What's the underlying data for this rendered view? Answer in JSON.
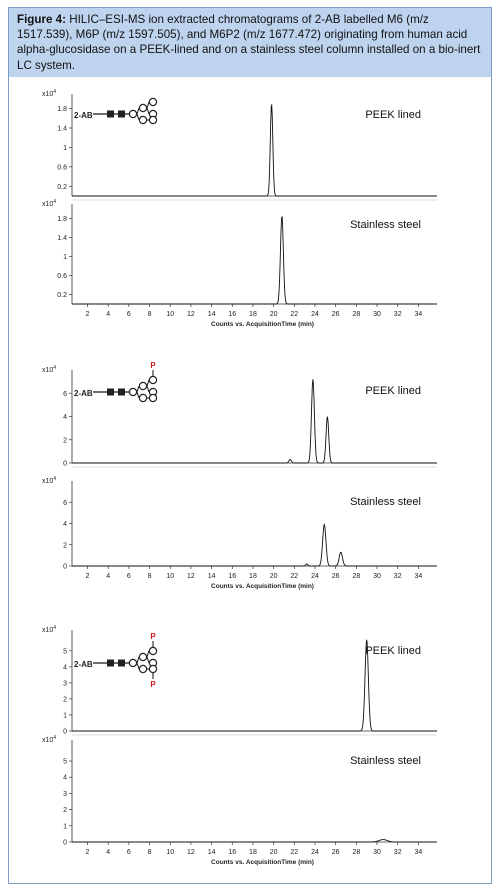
{
  "caption": {
    "label": "Figure 4:",
    "text": "HILIC–ESI-MS ion extracted chromatograms of 2-AB labelled M6 (m/z 1517.539), M6P (m/z 1597.505), and M6P2 (m/z 1677.472) originating from human acid alpha-glucosidase on a PEEK-lined and on a stainless steel column installed on a bio-inert LC system."
  },
  "glycan": {
    "tag": "2-AB",
    "phosphate": "P"
  },
  "chart_data": [
    {
      "type": "line",
      "title": "",
      "xlabel": "Counts vs. AcquisitionTime (min)",
      "xlim": [
        0.5,
        35.8
      ],
      "xticks": [
        2,
        4,
        6,
        8,
        10,
        12,
        14,
        16,
        18,
        20,
        22,
        24,
        26,
        28,
        30,
        32,
        34
      ],
      "glycan_label": "M6",
      "panels": [
        {
          "label": "PEEK lined",
          "y_scale": "x10^4",
          "ylim": [
            0,
            2.1
          ],
          "yticks": [
            0.2,
            0.6,
            1,
            1.4,
            1.8
          ],
          "peaks": [
            {
              "rt": 19.8,
              "height": 1.9,
              "width": 0.12
            }
          ]
        },
        {
          "label": "Stainless steel",
          "y_scale": "x10^4",
          "ylim": [
            0,
            2.1
          ],
          "yticks": [
            0.2,
            0.6,
            1,
            1.4,
            1.8
          ],
          "peaks": [
            {
              "rt": 20.8,
              "height": 1.85,
              "width": 0.14
            }
          ]
        }
      ]
    },
    {
      "type": "line",
      "title": "",
      "xlabel": "Counts vs. AcquisitionTime (min)",
      "xlim": [
        0.5,
        35.8
      ],
      "xticks": [
        2,
        4,
        6,
        8,
        10,
        12,
        14,
        16,
        18,
        20,
        22,
        24,
        26,
        28,
        30,
        32,
        34
      ],
      "glycan_label": "M6P",
      "panels": [
        {
          "label": "PEEK lined",
          "y_scale": "x10^4",
          "ylim": [
            0,
            8
          ],
          "yticks": [
            0,
            2,
            4,
            6
          ],
          "peaks": [
            {
              "rt": 21.6,
              "height": 0.3,
              "width": 0.12
            },
            {
              "rt": 23.8,
              "height": 7.2,
              "width": 0.14
            },
            {
              "rt": 25.2,
              "height": 4.0,
              "width": 0.13
            }
          ]
        },
        {
          "label": "Stainless steel",
          "y_scale": "x10^4",
          "ylim": [
            0,
            8
          ],
          "yticks": [
            0,
            2,
            4,
            6
          ],
          "peaks": [
            {
              "rt": 23.2,
              "height": 0.2,
              "width": 0.1
            },
            {
              "rt": 24.9,
              "height": 3.9,
              "width": 0.16
            },
            {
              "rt": 26.5,
              "height": 1.3,
              "width": 0.16
            }
          ]
        }
      ]
    },
    {
      "type": "line",
      "title": "",
      "xlabel": "Counts vs. AcquisitionTime (min)",
      "xlim": [
        0.5,
        35.8
      ],
      "xticks": [
        2,
        4,
        6,
        8,
        10,
        12,
        14,
        16,
        18,
        20,
        22,
        24,
        26,
        28,
        30,
        32,
        34
      ],
      "glycan_label": "M6P2",
      "panels": [
        {
          "label": "PEEK lined",
          "y_scale": "x10^4",
          "ylim": [
            0,
            6.3
          ],
          "yticks": [
            0,
            1,
            2,
            3,
            4,
            5
          ],
          "peaks": [
            {
              "rt": 29.0,
              "height": 5.7,
              "width": 0.16
            }
          ]
        },
        {
          "label": "Stainless steel",
          "y_scale": "x10^4",
          "ylim": [
            0,
            6.3
          ],
          "yticks": [
            0,
            1,
            2,
            3,
            4,
            5
          ],
          "peaks": [
            {
              "rt": 30.6,
              "height": 0.15,
              "width": 0.4
            }
          ]
        }
      ]
    }
  ]
}
